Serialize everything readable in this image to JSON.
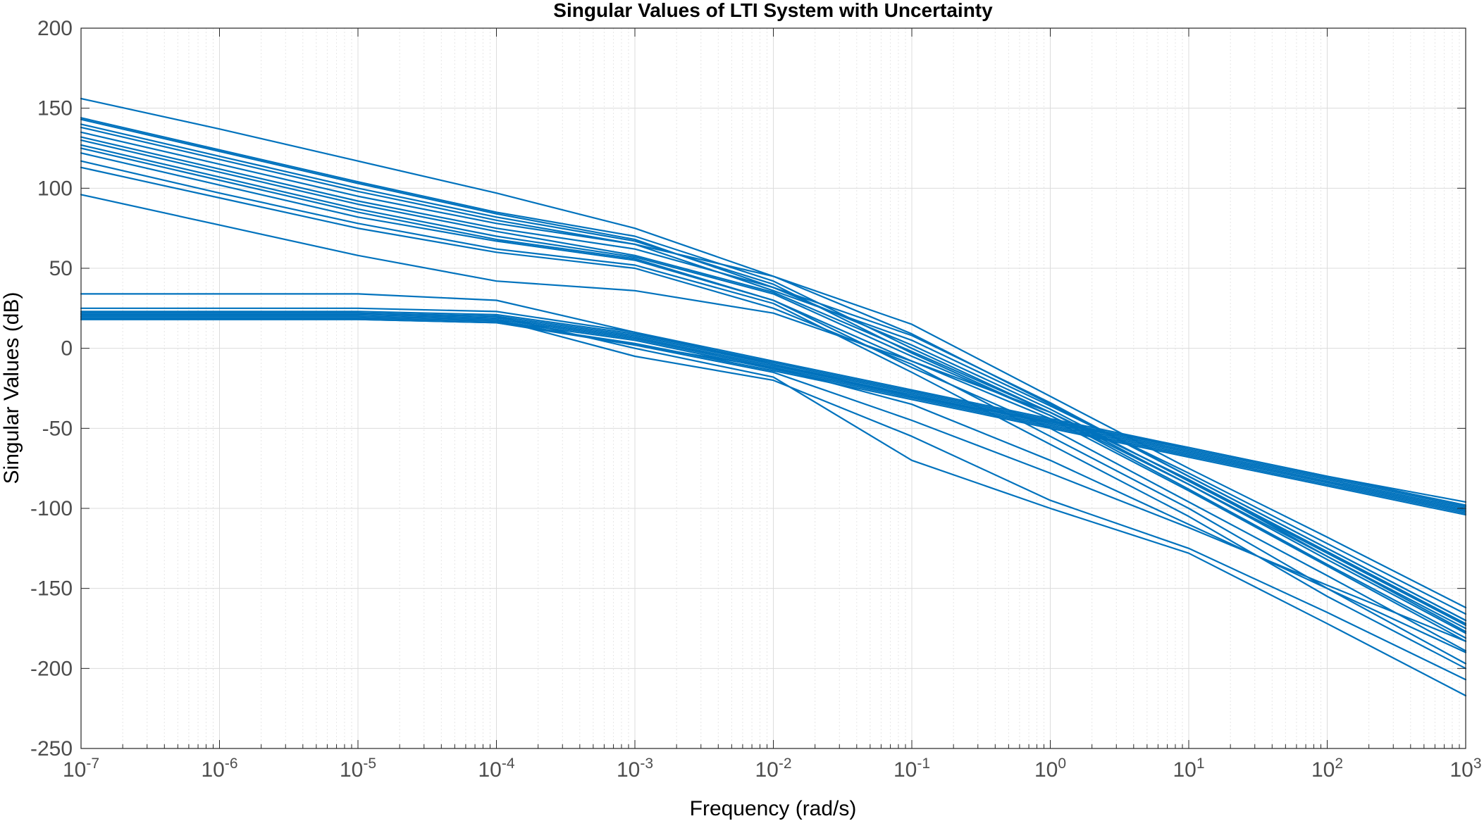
{
  "chart_data": {
    "type": "line",
    "title": "Singular Values of LTI System with Uncertainty",
    "xlabel": "Frequency (rad/s)",
    "ylabel": "Singular Values (dB)",
    "xscale": "log",
    "xlim": [
      1e-07,
      1000
    ],
    "ylim": [
      -250,
      200
    ],
    "grid": true,
    "minor_grid": true,
    "line_color": "#0072bd",
    "x_tick_labels": [
      {
        "base": "10",
        "exp": "-7"
      },
      {
        "base": "10",
        "exp": "-6"
      },
      {
        "base": "10",
        "exp": "-5"
      },
      {
        "base": "10",
        "exp": "-4"
      },
      {
        "base": "10",
        "exp": "-3"
      },
      {
        "base": "10",
        "exp": "-2"
      },
      {
        "base": "10",
        "exp": "-1"
      },
      {
        "base": "10",
        "exp": "0"
      },
      {
        "base": "10",
        "exp": "1"
      },
      {
        "base": "10",
        "exp": "2"
      },
      {
        "base": "10",
        "exp": "3"
      }
    ],
    "x_tick_values": [
      1e-07,
      1e-06,
      1e-05,
      0.0001,
      0.001,
      0.01,
      0.1,
      1,
      10,
      100,
      1000
    ],
    "y_tick_values": [
      200,
      150,
      100,
      50,
      0,
      -50,
      -100,
      -150,
      -200,
      -250
    ],
    "y_tick_labels": [
      "200",
      "150",
      "100",
      "50",
      "0",
      "-50",
      "-100",
      "-150",
      "-200",
      "-250"
    ],
    "x": [
      1e-07,
      1e-06,
      1e-05,
      0.0001,
      0.001,
      0.01,
      0.1,
      1,
      10,
      100,
      1000
    ],
    "series": [
      {
        "values": [
          156,
          137,
          117,
          97,
          75,
          45,
          9,
          -35,
          -80,
          -125,
          -170
        ]
      },
      {
        "values": [
          144,
          124,
          104,
          85,
          70,
          42,
          0,
          -40,
          -82,
          -127,
          -172
        ]
      },
      {
        "values": [
          143,
          123,
          103,
          84,
          68,
          38,
          2,
          -38,
          -83,
          -128,
          -173
        ]
      },
      {
        "values": [
          140,
          120,
          100,
          82,
          67,
          40,
          -3,
          -42,
          -85,
          -130,
          -175
        ]
      },
      {
        "values": [
          138,
          118,
          98,
          80,
          65,
          36,
          5,
          -36,
          -78,
          -122,
          -166
        ]
      },
      {
        "values": [
          135,
          115,
          95,
          78,
          65,
          45,
          15,
          -30,
          -75,
          -118,
          -162
        ]
      },
      {
        "values": [
          132,
          112,
          92,
          75,
          62,
          38,
          8,
          -34,
          -80,
          -125,
          -170
        ]
      },
      {
        "values": [
          130,
          110,
          90,
          73,
          58,
          35,
          -2,
          -40,
          -85,
          -132,
          -178
        ]
      },
      {
        "values": [
          127,
          107,
          87,
          70,
          57,
          34,
          -5,
          -42,
          -88,
          -135,
          -181
        ]
      },
      {
        "values": [
          125,
          105,
          85,
          68,
          56,
          30,
          -8,
          -44,
          -89,
          -136,
          -183
        ]
      },
      {
        "values": [
          122,
          102,
          82,
          67,
          55,
          30,
          -12,
          -50,
          -96,
          -142,
          -189
        ]
      },
      {
        "values": [
          117,
          97,
          78,
          62,
          52,
          28,
          -15,
          -60,
          -105,
          -155,
          -200
        ]
      },
      {
        "values": [
          113,
          94,
          75,
          60,
          50,
          25,
          -10,
          -55,
          -100,
          -150,
          -197
        ]
      },
      {
        "values": [
          96,
          77,
          58,
          42,
          36,
          22,
          -8,
          -40,
          -82,
          -130,
          -177
        ]
      },
      {
        "values": [
          34,
          34,
          34,
          30,
          10,
          -10,
          -30,
          -46,
          -62,
          -80,
          -96
        ]
      },
      {
        "values": [
          25,
          25,
          25,
          23,
          10,
          -8,
          -26,
          -44,
          -62,
          -80,
          -98
        ]
      },
      {
        "values": [
          23,
          23,
          23,
          21,
          9,
          -9,
          -27,
          -45,
          -63,
          -81,
          -99
        ]
      },
      {
        "values": [
          22,
          22,
          22,
          20,
          8,
          -10,
          -28,
          -46,
          -64,
          -82,
          -100
        ]
      },
      {
        "values": [
          21,
          21,
          21,
          19,
          7,
          -11,
          -29,
          -47,
          -65,
          -83,
          -101
        ]
      },
      {
        "values": [
          20,
          20,
          20,
          18,
          6,
          -12,
          -30,
          -48,
          -66,
          -84,
          -102
        ]
      },
      {
        "values": [
          19,
          19,
          19,
          17,
          5,
          -13,
          -31,
          -49,
          -67,
          -85,
          -103
        ]
      },
      {
        "values": [
          18,
          18,
          18,
          16,
          3,
          -14,
          -32,
          -50,
          -68,
          -86,
          -104
        ]
      },
      {
        "values": [
          22,
          22,
          22,
          20,
          0,
          -18,
          -70,
          -100,
          -128,
          -172,
          -217
        ]
      },
      {
        "values": [
          20,
          20,
          20,
          18,
          -5,
          -20,
          -55,
          -95,
          -125,
          -165,
          -207
        ]
      },
      {
        "values": [
          19,
          19,
          19,
          17,
          2,
          -15,
          -45,
          -78,
          -112,
          -148,
          -183
        ]
      },
      {
        "values": [
          18,
          18,
          18,
          16,
          2,
          -12,
          -35,
          -70,
          -110,
          -150,
          -190
        ]
      }
    ]
  }
}
